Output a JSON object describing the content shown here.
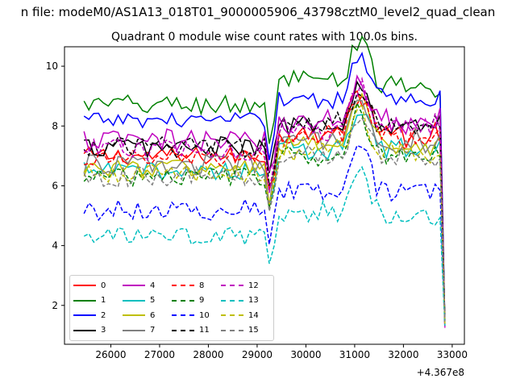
{
  "chart_data": {
    "type": "line",
    "figure_title": "n file: modeM0/AS1A13_018T01_9000005906_43798cztM0_level2_quad_clean",
    "title": "Quadrant 0 module wise count rates with 100.0s bins.",
    "xlabel": "",
    "ylabel": "",
    "x_offset_label": "+4.367e8",
    "xlim": [
      25050,
      33250
    ],
    "ylim": [
      0.7,
      10.65
    ],
    "xticks": [
      26000,
      27000,
      28000,
      29000,
      30000,
      31000,
      32000,
      33000
    ],
    "yticks": [
      2,
      4,
      6,
      8,
      10
    ],
    "grid": false,
    "legend_position": "lower-left",
    "x_start": 25450,
    "x_step": 100,
    "n_points": 75,
    "series": [
      {
        "name": "0",
        "color": "#ff0000",
        "linestyle": "solid",
        "base": 7.0,
        "noise": 0.3
      },
      {
        "name": "1",
        "color": "#008000",
        "linestyle": "solid",
        "base": 8.7,
        "noise": 0.35
      },
      {
        "name": "2",
        "color": "#0000ff",
        "linestyle": "solid",
        "base": 8.2,
        "noise": 0.25
      },
      {
        "name": "3",
        "color": "#000000",
        "linestyle": "solid",
        "base": 7.3,
        "noise": 0.35
      },
      {
        "name": "4",
        "color": "#bf00bf",
        "linestyle": "solid",
        "base": 7.5,
        "noise": 0.4
      },
      {
        "name": "5",
        "color": "#00bfbf",
        "linestyle": "solid",
        "base": 6.5,
        "noise": 0.3
      },
      {
        "name": "6",
        "color": "#bfbf00",
        "linestyle": "solid",
        "base": 6.6,
        "noise": 0.3
      },
      {
        "name": "7",
        "color": "#808080",
        "linestyle": "solid",
        "base": 6.7,
        "noise": 0.35
      },
      {
        "name": "8",
        "color": "#ff0000",
        "linestyle": "dashed",
        "base": 6.9,
        "noise": 0.3
      },
      {
        "name": "9",
        "color": "#008000",
        "linestyle": "dashed",
        "base": 6.3,
        "noise": 0.3
      },
      {
        "name": "10",
        "color": "#0000ff",
        "linestyle": "dashed",
        "base": 5.2,
        "noise": 0.35
      },
      {
        "name": "11",
        "color": "#000000",
        "linestyle": "dashed",
        "base": 7.3,
        "noise": 0.35
      },
      {
        "name": "12",
        "color": "#bf00bf",
        "linestyle": "dashed",
        "base": 7.2,
        "noise": 0.35
      },
      {
        "name": "13",
        "color": "#00bfbf",
        "linestyle": "dashed",
        "base": 4.3,
        "noise": 0.3
      },
      {
        "name": "14",
        "color": "#bfbf00",
        "linestyle": "dashed",
        "base": 6.4,
        "noise": 0.3
      },
      {
        "name": "15",
        "color": "#808080",
        "linestyle": "dashed",
        "base": 6.3,
        "noise": 0.35
      }
    ],
    "profile": {
      "dip_x": 29300,
      "dip_depth": 1.1,
      "step_x": 29350,
      "step_amount": 0.9,
      "peak_x": 31100,
      "peak_amount": 1.4,
      "peak_width": 250,
      "final_x": 32850,
      "final_value": 1.4
    }
  }
}
